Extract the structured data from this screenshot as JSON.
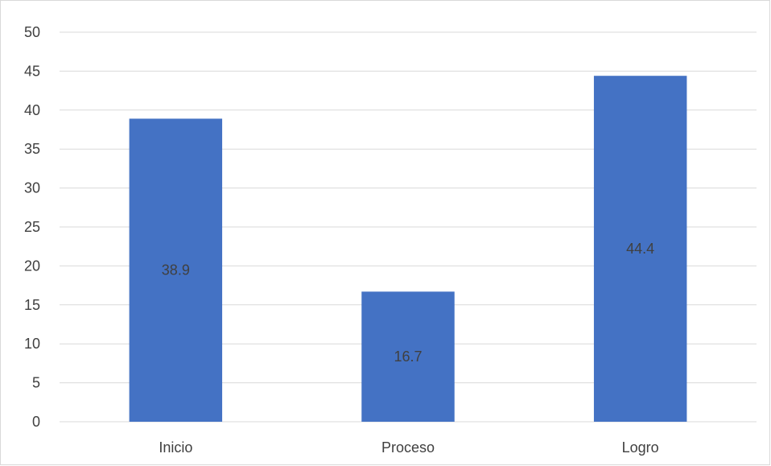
{
  "chart_data": {
    "type": "bar",
    "categories": [
      "Inicio",
      "Proceso",
      "Logro"
    ],
    "values": [
      38.9,
      16.7,
      44.4
    ],
    "data_labels": [
      "38.9",
      "16.7",
      "44.4"
    ],
    "title": "",
    "xlabel": "",
    "ylabel": "",
    "ylim": [
      0,
      50
    ],
    "yticks": [
      0,
      5,
      10,
      15,
      20,
      25,
      30,
      35,
      40,
      45,
      50
    ],
    "ytick_labels": [
      "0",
      "5",
      "10",
      "15",
      "20",
      "25",
      "30",
      "35",
      "40",
      "45",
      "50"
    ],
    "grid": true,
    "legend": "none",
    "colors": {
      "bar": "#4472c4",
      "grid": "#d9d9d9",
      "text": "#404040"
    }
  }
}
